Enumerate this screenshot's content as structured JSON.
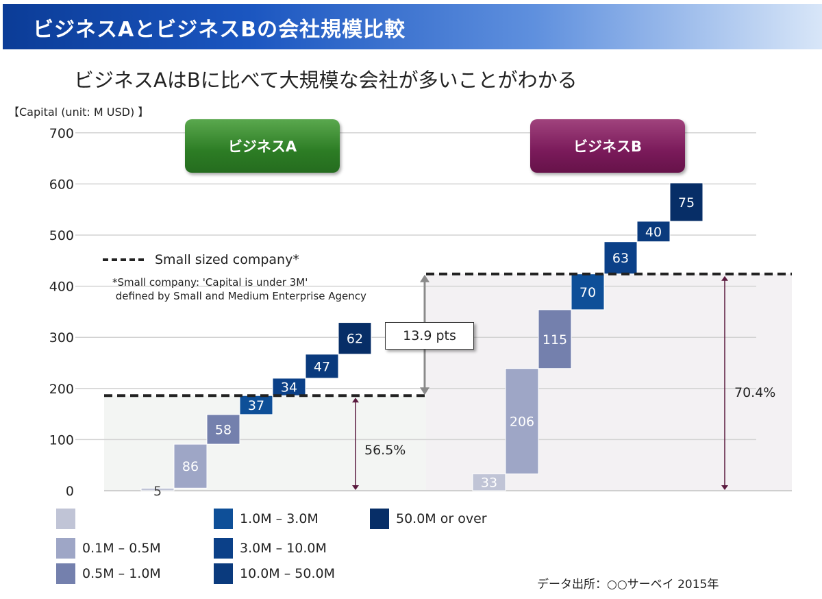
{
  "header": {
    "title": "ビジネスAとビジネスBの会社規模比較",
    "subtitle": "ビジネスAはBに比べて大規模な会社が多いことがわかる",
    "unit_label": "【Capital (unit: M USD) 】",
    "source": "データ出所：○○サーベイ 2015年"
  },
  "groups": [
    {
      "name": "ビジネスA",
      "color": "#2e7d27"
    },
    {
      "name": "ビジネスB",
      "color": "#7a1a5a"
    }
  ],
  "annotations": {
    "small_company_legend": "Small sized company*",
    "small_company_note": "*Small company: 'Capital is under 3M'\n defined by Small and Medium Enterprise Agency",
    "gap_label": "13.9 pts",
    "share_a": "56.5%",
    "share_b": "70.4%"
  },
  "legend": [
    {
      "label": "",
      "color": "#c0c4d6"
    },
    {
      "label": "0.1M – 0.5M",
      "color": "#9ea6c6"
    },
    {
      "label": "0.5M – 1.0M",
      "color": "#7480ad"
    },
    {
      "label": "1.0M – 3.0M",
      "color": "#0e4f98"
    },
    {
      "label": "3.0M – 10.0M",
      "color": "#0b4088"
    },
    {
      "label": "10.0M – 50.0M",
      "color": "#0a3a7d"
    },
    {
      "label": "50.0M or over",
      "color": "#072e67"
    }
  ],
  "chart_data": {
    "type": "bar",
    "subtype": "waterfall",
    "title": "ビジネスAとビジネスBの会社規模比較",
    "ylabel": "【Capital (unit: M USD) 】",
    "ylim": [
      0,
      700
    ],
    "yticks": [
      0,
      100,
      200,
      300,
      400,
      500,
      600,
      700
    ],
    "categories": [
      "",
      "0.1M – 0.5M",
      "0.5M – 1.0M",
      "1.0M – 3.0M",
      "3.0M – 10.0M",
      "10.0M – 50.0M",
      "50.0M or over"
    ],
    "series": [
      {
        "name": "ビジネスA",
        "values": [
          5,
          86,
          58,
          37,
          34,
          47,
          62
        ],
        "small_total": 186,
        "small_share": "56.5%"
      },
      {
        "name": "ビジネスB",
        "values": [
          33,
          206,
          115,
          70,
          63,
          40,
          75
        ],
        "small_total": 424,
        "small_share": "70.4%"
      }
    ],
    "grid": true
  }
}
